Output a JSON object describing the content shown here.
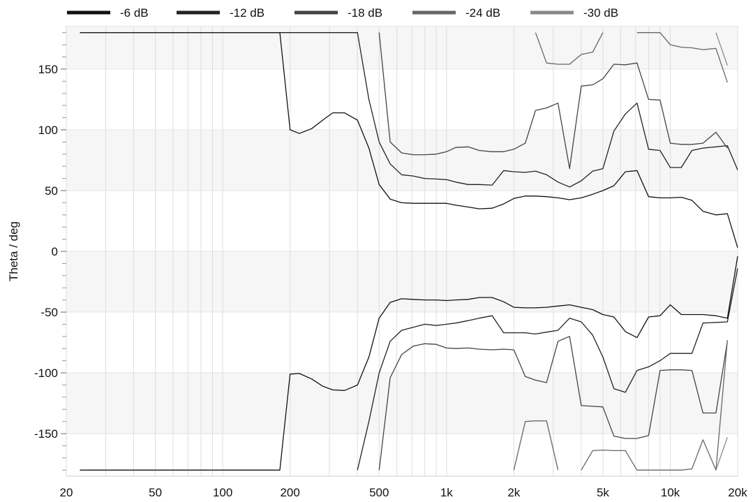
{
  "chart_data": {
    "type": "line",
    "title": "",
    "xlabel": "",
    "ylabel": "Theta / deg",
    "x_scale": "log",
    "xlim": [
      20,
      20000
    ],
    "ylim": [
      -185,
      185
    ],
    "x_ticks": [
      {
        "value": 20,
        "label": "20"
      },
      {
        "value": 50,
        "label": "50"
      },
      {
        "value": 100,
        "label": "100"
      },
      {
        "value": 200,
        "label": "200"
      },
      {
        "value": 500,
        "label": "500"
      },
      {
        "value": 1000,
        "label": "1k"
      },
      {
        "value": 2000,
        "label": "2k"
      },
      {
        "value": 5000,
        "label": "5k"
      },
      {
        "value": 10000,
        "label": "10k"
      },
      {
        "value": 20000,
        "label": "20k"
      }
    ],
    "y_ticks": [
      {
        "value": 150,
        "label": "150"
      },
      {
        "value": 100,
        "label": "100"
      },
      {
        "value": 50,
        "label": "50"
      },
      {
        "value": 0,
        "label": "0"
      },
      {
        "value": -50,
        "label": "-50"
      },
      {
        "value": -100,
        "label": "-100"
      },
      {
        "value": -150,
        "label": "-150"
      }
    ],
    "grid": true,
    "legend_position": "top",
    "series": [
      {
        "name": "-6 dB",
        "color": "#111111",
        "segments": [
          [
            [
              23,
              180
            ],
            [
              180,
              180
            ],
            [
              200,
              100
            ],
            [
              220,
              97
            ],
            [
              250,
              101
            ],
            [
              280,
              108
            ],
            [
              310,
              114
            ],
            [
              350,
              114
            ],
            [
              400,
              108
            ],
            [
              450,
              85
            ],
            [
              500,
              55
            ],
            [
              560,
              43
            ],
            [
              630,
              40
            ],
            [
              710,
              39.5
            ],
            [
              800,
              39.5
            ],
            [
              900,
              39.5
            ],
            [
              1000,
              39.5
            ],
            [
              1100,
              38
            ],
            [
              1250,
              36.5
            ],
            [
              1400,
              35
            ],
            [
              1600,
              35.5
            ],
            [
              1800,
              39
            ],
            [
              2000,
              43.5
            ],
            [
              2250,
              45.5
            ],
            [
              2500,
              45.5
            ],
            [
              2800,
              45
            ],
            [
              3150,
              44
            ],
            [
              3550,
              42.5
            ],
            [
              4000,
              44
            ],
            [
              4500,
              47
            ],
            [
              5000,
              50
            ],
            [
              5600,
              54
            ],
            [
              6300,
              65.5
            ],
            [
              7100,
              66.5
            ],
            [
              8000,
              45
            ],
            [
              9000,
              44
            ],
            [
              10000,
              44
            ],
            [
              11200,
              44.5
            ],
            [
              12500,
              42
            ],
            [
              14000,
              33
            ],
            [
              16000,
              30
            ],
            [
              18000,
              31
            ],
            [
              20000,
              3
            ]
          ],
          [
            [
              23,
              -180
            ],
            [
              180,
              -180
            ],
            [
              200,
              -101
            ],
            [
              220,
              -100.5
            ],
            [
              250,
              -105
            ],
            [
              280,
              -111
            ],
            [
              310,
              -114
            ],
            [
              350,
              -114.5
            ],
            [
              400,
              -110
            ],
            [
              450,
              -87
            ],
            [
              500,
              -55
            ],
            [
              560,
              -42
            ],
            [
              630,
              -39
            ],
            [
              710,
              -39.5
            ],
            [
              800,
              -40
            ],
            [
              900,
              -40
            ],
            [
              1000,
              -40.5
            ],
            [
              1100,
              -40
            ],
            [
              1250,
              -39.5
            ],
            [
              1400,
              -38
            ],
            [
              1600,
              -38
            ],
            [
              1800,
              -41.5
            ],
            [
              2000,
              -46
            ],
            [
              2250,
              -46.5
            ],
            [
              2500,
              -46.5
            ],
            [
              2800,
              -46
            ],
            [
              3150,
              -45
            ],
            [
              3550,
              -44
            ],
            [
              4000,
              -46
            ],
            [
              4500,
              -48
            ],
            [
              5000,
              -52
            ],
            [
              5600,
              -54
            ],
            [
              6300,
              -66
            ],
            [
              7100,
              -71
            ],
            [
              8000,
              -54
            ],
            [
              9000,
              -53
            ],
            [
              10000,
              -44
            ],
            [
              11200,
              -52
            ],
            [
              12500,
              -52
            ],
            [
              14000,
              -52
            ],
            [
              16000,
              -53
            ],
            [
              18000,
              -55
            ],
            [
              20000,
              -4
            ]
          ]
        ]
      },
      {
        "name": "-12 dB",
        "color": "#222222",
        "segments": [
          [
            [
              23,
              180
            ],
            [
              400,
              180
            ],
            [
              450,
              125
            ],
            [
              500,
              90
            ],
            [
              560,
              72
            ],
            [
              630,
              63
            ],
            [
              710,
              62
            ],
            [
              800,
              60
            ],
            [
              900,
              59.5
            ],
            [
              1000,
              59
            ],
            [
              1100,
              57
            ],
            [
              1250,
              55
            ],
            [
              1400,
              55
            ],
            [
              1600,
              54.5
            ],
            [
              1800,
              66.5
            ],
            [
              2000,
              65.5
            ],
            [
              2250,
              65
            ],
            [
              2500,
              66
            ],
            [
              2800,
              63
            ],
            [
              3150,
              57
            ],
            [
              3550,
              53
            ],
            [
              4000,
              58
            ],
            [
              4500,
              66
            ],
            [
              5000,
              68
            ],
            [
              5600,
              99
            ],
            [
              6300,
              113
            ],
            [
              7100,
              122
            ],
            [
              8000,
              84
            ],
            [
              9000,
              83
            ],
            [
              10000,
              69
            ],
            [
              11200,
              69
            ],
            [
              12500,
              83
            ],
            [
              14000,
              85
            ],
            [
              16000,
              86
            ],
            [
              18000,
              87
            ],
            [
              20000,
              67
            ]
          ],
          [
            [
              400,
              -180
            ],
            [
              450,
              -140
            ],
            [
              500,
              -100
            ],
            [
              560,
              -74
            ],
            [
              630,
              -65
            ],
            [
              710,
              -62.5
            ],
            [
              800,
              -60
            ],
            [
              900,
              -61
            ],
            [
              1000,
              -60
            ],
            [
              1100,
              -59
            ],
            [
              1250,
              -57
            ],
            [
              1400,
              -55
            ],
            [
              1600,
              -53
            ],
            [
              1800,
              -67
            ],
            [
              2000,
              -67
            ],
            [
              2250,
              -67
            ],
            [
              2500,
              -68
            ],
            [
              2800,
              -66.5
            ],
            [
              3150,
              -65
            ],
            [
              3550,
              -55
            ],
            [
              4000,
              -58
            ],
            [
              4500,
              -69
            ],
            [
              5000,
              -87
            ],
            [
              5600,
              -113
            ],
            [
              6300,
              -116
            ],
            [
              7100,
              -98
            ],
            [
              8000,
              -95
            ],
            [
              9000,
              -90
            ],
            [
              10000,
              -84
            ],
            [
              11200,
              -84
            ],
            [
              12500,
              -84
            ],
            [
              14000,
              -59
            ],
            [
              16000,
              -58.5
            ],
            [
              18000,
              -58
            ],
            [
              20000,
              -14
            ]
          ]
        ]
      },
      {
        "name": "-18 dB",
        "color": "#444444",
        "segments": [
          [
            [
              500,
              180
            ],
            [
              560,
              90
            ],
            [
              630,
              81
            ],
            [
              710,
              79.5
            ],
            [
              800,
              79.5
            ],
            [
              900,
              80
            ],
            [
              1000,
              82
            ],
            [
              1100,
              85.5
            ],
            [
              1250,
              86
            ],
            [
              1400,
              83
            ],
            [
              1600,
              82
            ],
            [
              1800,
              82
            ],
            [
              2000,
              84
            ],
            [
              2250,
              89
            ],
            [
              2500,
              116
            ],
            [
              2800,
              118
            ],
            [
              3150,
              122
            ],
            [
              3550,
              68
            ],
            [
              4000,
              136
            ],
            [
              4500,
              137
            ],
            [
              5000,
              142
            ],
            [
              5600,
              154
            ],
            [
              6300,
              153.5
            ],
            [
              7100,
              155
            ],
            [
              8000,
              125
            ],
            [
              9000,
              124.5
            ],
            [
              10000,
              89
            ],
            [
              11200,
              88
            ],
            [
              12500,
              88
            ],
            [
              14000,
              89
            ],
            [
              16000,
              98
            ],
            [
              18000,
              85
            ]
          ],
          [
            [
              500,
              -180
            ],
            [
              560,
              -104
            ],
            [
              630,
              -85
            ],
            [
              710,
              -78
            ],
            [
              800,
              -76
            ],
            [
              900,
              -76.5
            ],
            [
              1000,
              -79.5
            ],
            [
              1100,
              -80
            ],
            [
              1250,
              -79.5
            ],
            [
              1400,
              -80.5
            ],
            [
              1600,
              -81
            ],
            [
              1800,
              -80.5
            ],
            [
              2000,
              -81
            ],
            [
              2250,
              -103
            ],
            [
              2500,
              -106
            ],
            [
              2800,
              -108
            ],
            [
              3150,
              -74
            ],
            [
              3550,
              -70
            ],
            [
              4000,
              -127
            ],
            [
              4500,
              -127.5
            ],
            [
              5000,
              -128
            ],
            [
              5600,
              -152
            ],
            [
              6300,
              -154
            ],
            [
              7100,
              -154
            ],
            [
              8000,
              -151.5
            ],
            [
              9000,
              -98
            ],
            [
              10000,
              -97.5
            ],
            [
              11200,
              -97.5
            ],
            [
              12500,
              -98
            ],
            [
              14000,
              -133
            ],
            [
              16000,
              -133
            ],
            [
              18000,
              -74
            ]
          ]
        ]
      },
      {
        "name": "-24 dB",
        "color": "#666666",
        "segments": [
          [
            [
              2500,
              180
            ],
            [
              2800,
              155
            ],
            [
              3150,
              154
            ],
            [
              3550,
              154
            ],
            [
              4000,
              162
            ],
            [
              4500,
              164
            ],
            [
              5000,
              180
            ]
          ],
          [
            [
              7100,
              180
            ],
            [
              8000,
              180
            ],
            [
              9000,
              180
            ],
            [
              10000,
              170
            ],
            [
              11200,
              168
            ],
            [
              12500,
              167.5
            ],
            [
              14000,
              166
            ],
            [
              16000,
              167
            ],
            [
              18000,
              139
            ]
          ],
          [
            [
              2000,
              -180
            ],
            [
              2250,
              -140
            ],
            [
              2500,
              -139.5
            ],
            [
              2800,
              -139.5
            ],
            [
              3150,
              -180
            ]
          ],
          [
            [
              4000,
              -180
            ],
            [
              4500,
              -164
            ],
            [
              5000,
              -163.5
            ],
            [
              5600,
              -164
            ],
            [
              6300,
              -164
            ],
            [
              7100,
              -180
            ],
            [
              8000,
              -180
            ],
            [
              9000,
              -180
            ],
            [
              10000,
              -180
            ],
            [
              11200,
              -180
            ],
            [
              12500,
              -179
            ],
            [
              14000,
              -155
            ],
            [
              16000,
              -180
            ],
            [
              18000,
              -73
            ]
          ]
        ]
      },
      {
        "name": "-30 dB",
        "color": "#888888",
        "segments": [
          [
            [
              16000,
              180
            ],
            [
              18000,
              153
            ]
          ],
          [
            [
              16000,
              -180
            ],
            [
              18000,
              -153
            ]
          ]
        ]
      }
    ]
  }
}
